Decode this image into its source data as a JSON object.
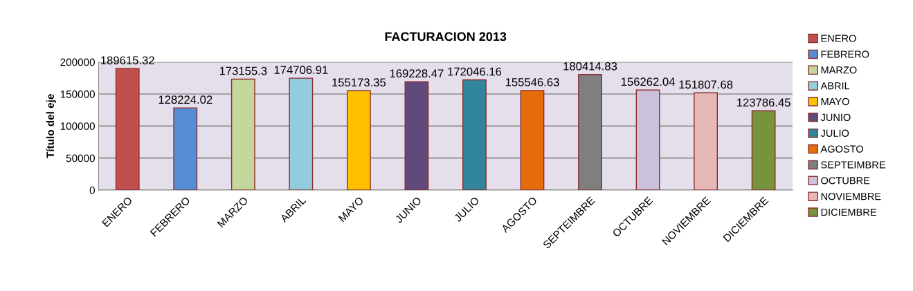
{
  "chart_data": {
    "type": "bar",
    "title": "FACTURACION 2013",
    "ylabel": "Título del eje",
    "categories": [
      "ENERO",
      "FEBRERO",
      "MARZO",
      "ABRIL",
      "MAYO",
      "JUNIO",
      "JULIO",
      "AGOSTO",
      "SEPTEIMBRE",
      "OCTUBRE",
      "NOVIEMBRE",
      "DICIEMBRE"
    ],
    "series": [
      {
        "name": "ENERO",
        "color": "#c0504d",
        "values": [
          189615.32,
          null,
          null,
          null,
          null,
          null,
          null,
          null,
          null,
          null,
          null,
          null
        ]
      },
      {
        "name": "FEBRERO",
        "color": "#558ed5",
        "values": [
          null,
          128224.02,
          null,
          null,
          null,
          null,
          null,
          null,
          null,
          null,
          null,
          null
        ]
      },
      {
        "name": "MARZO",
        "color": "#c3d69b",
        "values": [
          null,
          null,
          173155.3,
          null,
          null,
          null,
          null,
          null,
          null,
          null,
          null,
          null
        ]
      },
      {
        "name": "ABRIL",
        "color": "#93cddd",
        "values": [
          null,
          null,
          null,
          174706.91,
          null,
          null,
          null,
          null,
          null,
          null,
          null,
          null
        ]
      },
      {
        "name": "MAYO",
        "color": "#ffc000",
        "values": [
          null,
          null,
          null,
          null,
          155173.35,
          null,
          null,
          null,
          null,
          null,
          null,
          null
        ]
      },
      {
        "name": "JUNIO",
        "color": "#604a7b",
        "values": [
          null,
          null,
          null,
          null,
          null,
          169228.47,
          null,
          null,
          null,
          null,
          null,
          null
        ]
      },
      {
        "name": "JULIO",
        "color": "#31859c",
        "values": [
          null,
          null,
          null,
          null,
          null,
          null,
          172046.16,
          null,
          null,
          null,
          null,
          null
        ]
      },
      {
        "name": "AGOSTO",
        "color": "#e46c0a",
        "values": [
          null,
          null,
          null,
          null,
          null,
          null,
          null,
          155546.63,
          null,
          null,
          null,
          null
        ]
      },
      {
        "name": "SEPTEIMBRE",
        "color": "#7f7f7f",
        "values": [
          null,
          null,
          null,
          null,
          null,
          null,
          null,
          null,
          180414.83,
          null,
          null,
          null
        ]
      },
      {
        "name": "OCTUBRE",
        "color": "#ccc1da",
        "values": [
          null,
          null,
          null,
          null,
          null,
          null,
          null,
          null,
          null,
          156262.04,
          null,
          null
        ]
      },
      {
        "name": "NOVIEMBRE",
        "color": "#e6b9b8",
        "values": [
          null,
          null,
          null,
          null,
          null,
          null,
          null,
          null,
          null,
          null,
          151807.68,
          null
        ]
      },
      {
        "name": "DICIEMBRE",
        "color": "#77933c",
        "values": [
          null,
          null,
          null,
          null,
          null,
          null,
          null,
          null,
          null,
          null,
          null,
          123786.45
        ]
      }
    ],
    "data_labels": true,
    "ylim": [
      0,
      200000
    ],
    "yticks": [
      0,
      50000,
      100000,
      150000,
      200000
    ],
    "grid": "y",
    "legend": "right"
  }
}
